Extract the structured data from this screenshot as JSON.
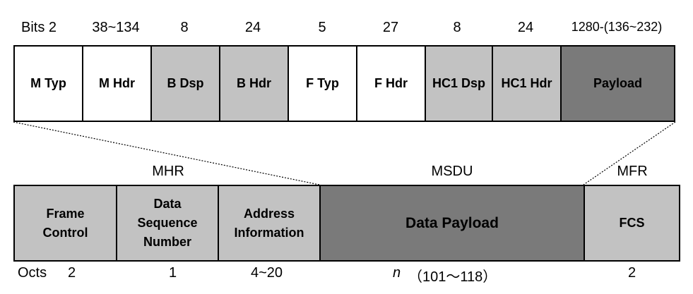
{
  "top": {
    "bits_prefix": "Bits 2",
    "bit_labels": [
      "38~134",
      "8",
      "24",
      "5",
      "27",
      "8",
      "24",
      "1280-(136~232)"
    ],
    "fields": [
      "M Typ",
      "M Hdr",
      "B Dsp",
      "B Hdr",
      "F Typ",
      "F Hdr",
      "HC1 Dsp",
      "HC1 Hdr",
      "Payload"
    ]
  },
  "groups": {
    "mhr": "MHR",
    "msdu": "MSDU",
    "mfr": "MFR"
  },
  "bottom": {
    "fields": [
      {
        "lines": [
          "Frame",
          "Control"
        ]
      },
      {
        "lines": [
          "Data",
          "Sequence",
          "Number"
        ]
      },
      {
        "lines": [
          "Address",
          "Information"
        ]
      },
      {
        "lines": [
          "Data Payload"
        ]
      },
      {
        "lines": [
          "FCS"
        ]
      }
    ],
    "octs_prefix": "Octs",
    "octs_values": [
      "2",
      "1",
      "4~20",
      "n",
      "（101～118）",
      "2"
    ]
  },
  "colors": {
    "white": "#ffffff",
    "light_gray": "#c2c2c2",
    "dark_gray": "#7a7a7a"
  }
}
